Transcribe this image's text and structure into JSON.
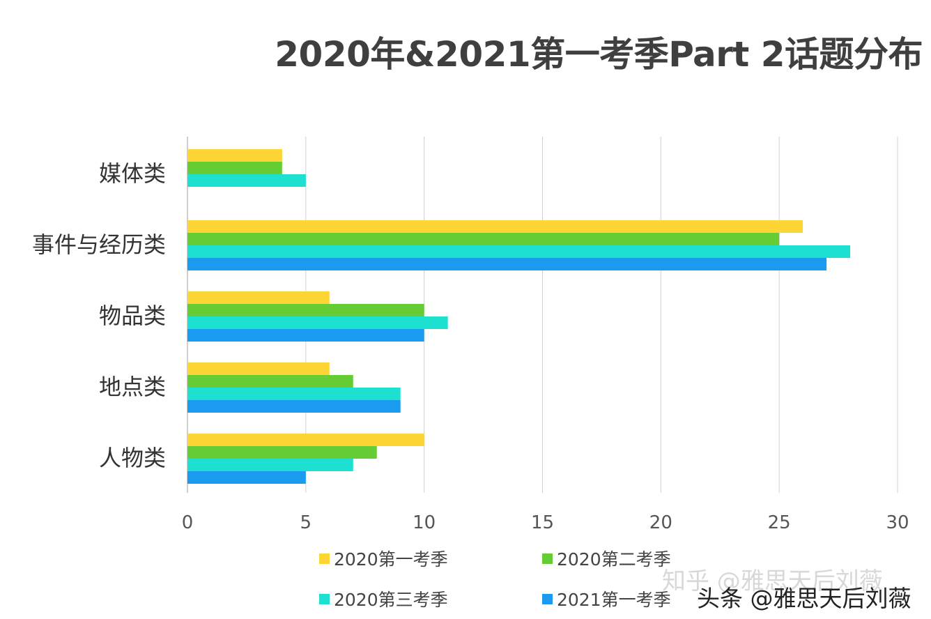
{
  "chart_data": {
    "type": "bar",
    "orientation": "horizontal",
    "title": "2020年&2021第一考季Part 2话题分布",
    "categories": [
      "媒体类",
      "事件与经历类",
      "物品类",
      "地点类",
      "人物类"
    ],
    "series": [
      {
        "name": "2020第一考季",
        "color": "#fdd535",
        "values": [
          4,
          26,
          6,
          6,
          10
        ]
      },
      {
        "name": "2020第二考季",
        "color": "#66cc33",
        "values": [
          4,
          25,
          10,
          7,
          8
        ]
      },
      {
        "name": "2020第三考季",
        "color": "#1ee0d0",
        "values": [
          5,
          28,
          11,
          9,
          7
        ]
      },
      {
        "name": "2021第一考季",
        "color": "#1a9bf0",
        "values": [
          null,
          27,
          10,
          9,
          5
        ]
      }
    ],
    "xlim": [
      0,
      30
    ],
    "xticks": [
      "0",
      "5",
      "10",
      "15",
      "20",
      "25",
      "30"
    ],
    "grid": true,
    "legend_position": "bottom"
  },
  "watermarks": {
    "zhihu": "知乎 @雅思天后刘薇",
    "toutiao": "头条 @雅思天后刘薇"
  }
}
